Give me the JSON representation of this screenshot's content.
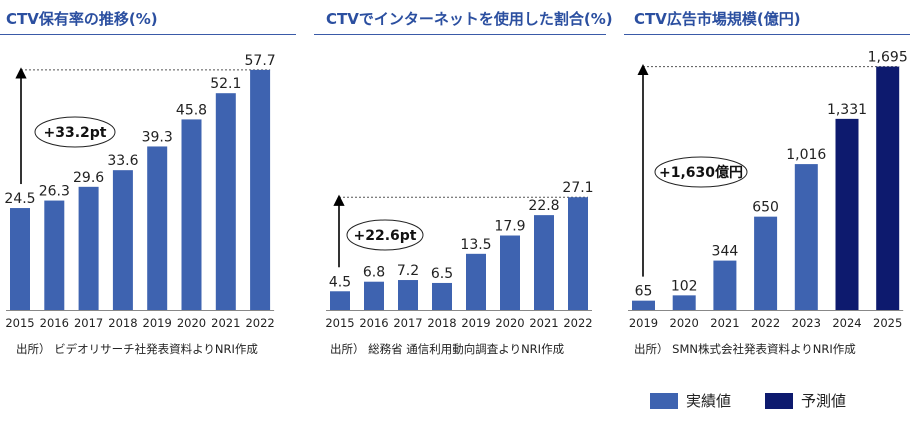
{
  "colors": {
    "actual": "#3e63b0",
    "forecast": "#0d1a6e",
    "title": "#2b4fa0"
  },
  "chart_data": [
    {
      "type": "bar",
      "title": "CTV保有率の推移(%)",
      "categories": [
        "2015",
        "2016",
        "2017",
        "2018",
        "2019",
        "2020",
        "2021",
        "2022"
      ],
      "values": [
        24.5,
        26.3,
        29.6,
        33.6,
        39.3,
        45.8,
        52.1,
        57.7
      ],
      "value_labels": [
        "24.5",
        "26.3",
        "29.6",
        "33.6",
        "39.3",
        "45.8",
        "52.1",
        "57.7"
      ],
      "forecast": [
        false,
        false,
        false,
        false,
        false,
        false,
        false,
        false
      ],
      "ylim": [
        0,
        62
      ],
      "annotation": "+33.2pt",
      "source": "出所） ビデオリサーチ社発表資料よりNRI作成"
    },
    {
      "type": "bar",
      "title": "CTVでインターネットを使用した割合(%)",
      "categories": [
        "2015",
        "2016",
        "2017",
        "2018",
        "2019",
        "2020",
        "2021",
        "2022"
      ],
      "values": [
        4.5,
        6.8,
        7.2,
        6.5,
        13.5,
        17.9,
        22.8,
        27.1
      ],
      "value_labels": [
        "4.5",
        "6.8",
        "7.2",
        "6.5",
        "13.5",
        "17.9",
        "22.8",
        "27.1"
      ],
      "forecast": [
        false,
        false,
        false,
        false,
        false,
        false,
        false,
        false
      ],
      "ylim": [
        0,
        62
      ],
      "annotation": "+22.6pt",
      "source": "出所） 総務省 通信利用動向調査よりNRI作成"
    },
    {
      "type": "bar",
      "title": "CTV広告市場規模(億円)",
      "categories": [
        "2019",
        "2020",
        "2021",
        "2022",
        "2023",
        "2024",
        "2025"
      ],
      "values": [
        65,
        102,
        344,
        650,
        1016,
        1331,
        1695
      ],
      "value_labels": [
        "65",
        "102",
        "344",
        "650",
        "1,016",
        "1,331",
        "1,695"
      ],
      "forecast": [
        false,
        false,
        false,
        false,
        false,
        true,
        true
      ],
      "ylim": [
        0,
        1720
      ],
      "annotation": "+1,630億円",
      "source": "出所） SMN株式会社発表資料よりNRI作成"
    }
  ],
  "legend": [
    {
      "label": "実績値",
      "color": "#3e63b0"
    },
    {
      "label": "予測値",
      "color": "#0d1a6e"
    }
  ]
}
